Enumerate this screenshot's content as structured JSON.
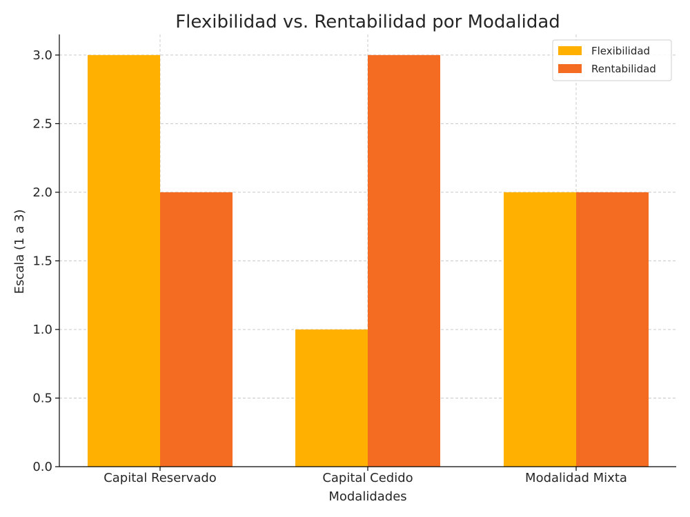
{
  "chart_data": {
    "type": "bar",
    "title": "Flexibilidad vs. Rentabilidad por Modalidad",
    "xlabel": "Modalidades",
    "ylabel": "Escala (1 a 3)",
    "categories": [
      "Capital Reservado",
      "Capital Cedido",
      "Modalidad Mixta"
    ],
    "series": [
      {
        "name": "Flexibilidad",
        "values": [
          3,
          1,
          2
        ],
        "color": "#FFB000"
      },
      {
        "name": "Rentabilidad",
        "values": [
          2,
          3,
          2
        ],
        "color": "#F46B22"
      }
    ],
    "ylim": [
      0,
      3.15
    ],
    "yticks": [
      "0.0",
      "0.5",
      "1.0",
      "1.5",
      "2.0",
      "2.5",
      "3.0"
    ],
    "grid": true,
    "legend_position": "top-right"
  }
}
